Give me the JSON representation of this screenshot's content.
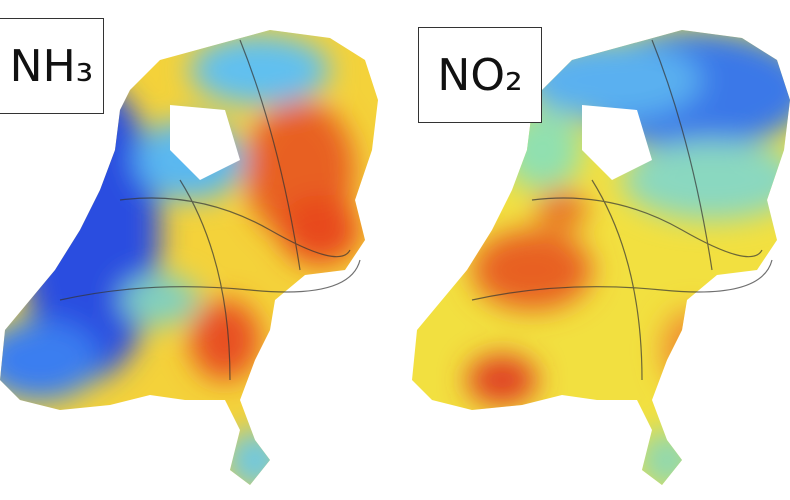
{
  "panels": [
    {
      "label": "NH₃"
    },
    {
      "label": "NO₂"
    }
  ]
}
